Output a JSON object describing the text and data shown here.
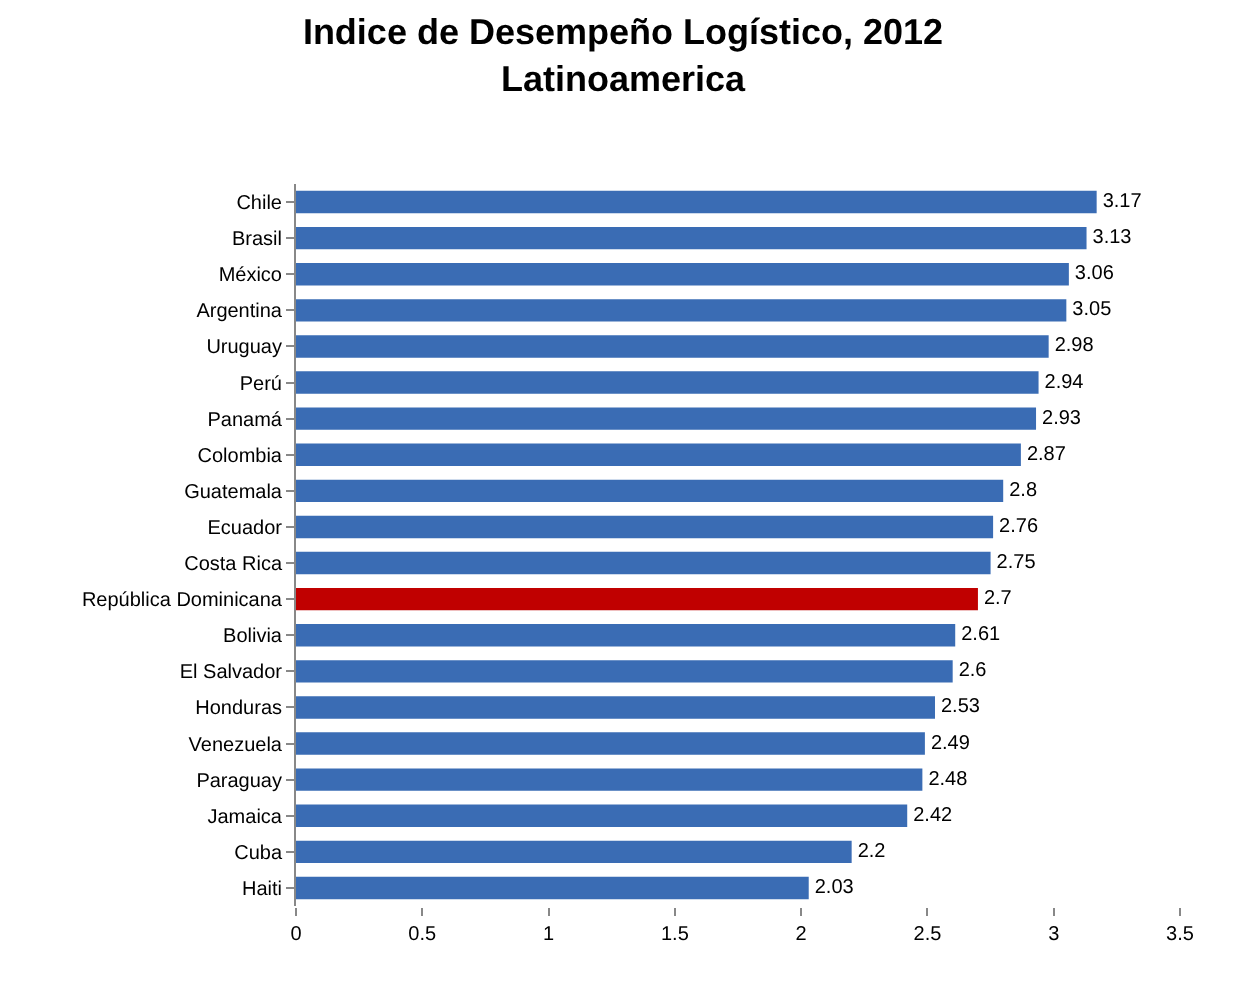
{
  "chart_data": {
    "type": "bar",
    "orientation": "horizontal",
    "title": "Indice de Desempeño Logístico, 2012\nLatinoamerica",
    "categories": [
      "Chile",
      "Brasil",
      "México",
      "Argentina",
      "Uruguay",
      "Perú",
      "Panamá",
      "Colombia",
      "Guatemala",
      "Ecuador",
      "Costa Rica",
      "República Dominicana",
      "Bolivia",
      "El Salvador",
      "Honduras",
      "Venezuela",
      "Paraguay",
      "Jamaica",
      "Cuba",
      "Haiti"
    ],
    "values": [
      3.17,
      3.13,
      3.06,
      3.05,
      2.98,
      2.94,
      2.93,
      2.87,
      2.8,
      2.76,
      2.75,
      2.7,
      2.61,
      2.6,
      2.53,
      2.49,
      2.48,
      2.42,
      2.2,
      2.03
    ],
    "colors": [
      "#3a6cb4",
      "#3a6cb4",
      "#3a6cb4",
      "#3a6cb4",
      "#3a6cb4",
      "#3a6cb4",
      "#3a6cb4",
      "#3a6cb4",
      "#3a6cb4",
      "#3a6cb4",
      "#3a6cb4",
      "#c00000",
      "#3a6cb4",
      "#3a6cb4",
      "#3a6cb4",
      "#3a6cb4",
      "#3a6cb4",
      "#3a6cb4",
      "#3a6cb4",
      "#3a6cb4"
    ],
    "xlim": [
      0,
      3.5
    ],
    "xticks": [
      0,
      0.5,
      1,
      1.5,
      2,
      2.5,
      3,
      3.5
    ],
    "data_labels": true,
    "legend": false
  }
}
